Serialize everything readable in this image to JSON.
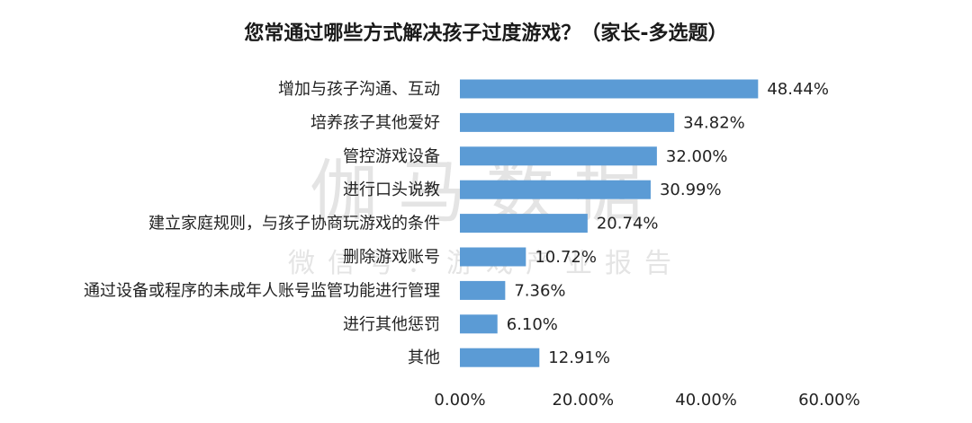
{
  "chart_data": {
    "type": "bar",
    "orientation": "horizontal",
    "title": "您常通过哪些方式解决孩子过度游戏？（家长-多选题）",
    "categories": [
      "增加与孩子沟通、互动",
      "培养孩子其他爱好",
      "管控游戏设备",
      "进行口头说教",
      "建立家庭规则，与孩子协商玩游戏的条件",
      "删除游戏账号",
      "通过设备或程序的未成年人账号监管功能进行管理",
      "进行其他惩罚",
      "其他"
    ],
    "values": [
      48.44,
      34.82,
      32.0,
      30.99,
      20.74,
      10.72,
      7.36,
      6.1,
      12.91
    ],
    "value_labels": [
      "48.44%",
      "34.82%",
      "32.00%",
      "30.99%",
      "20.74%",
      "10.72%",
      "7.36%",
      "6.10%",
      "12.91%"
    ],
    "xlim": [
      0,
      60
    ],
    "x_ticks": [
      0,
      20,
      40,
      60
    ],
    "x_tick_labels": [
      "0.00%",
      "20.00%",
      "40.00%",
      "60.00%"
    ],
    "xlabel": "",
    "ylabel": "",
    "grid": false,
    "legend": "none",
    "bar_color": "#5b9bd5"
  },
  "watermark": {
    "line1": "伽马数据",
    "line2": "微信号：游戏产业报告"
  }
}
